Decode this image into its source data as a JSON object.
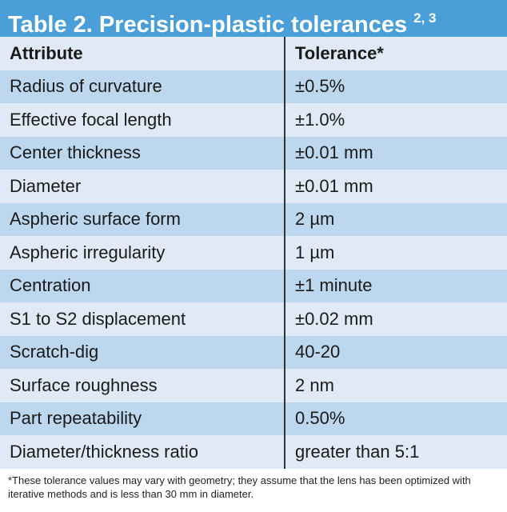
{
  "title": "Table 2. Precision-plastic tolerances",
  "title_superscript": "2, 3",
  "table": {
    "header": [
      "Attribute",
      "Tolerance*"
    ],
    "rows": [
      [
        "Radius of curvature",
        "±0.5%"
      ],
      [
        "Effective focal length",
        "±1.0%"
      ],
      [
        "Center thickness",
        "±0.01 mm"
      ],
      [
        "Diameter",
        "±0.01 mm"
      ],
      [
        "Aspheric surface form",
        "2 µm"
      ],
      [
        "Aspheric irregularity",
        "1 µm"
      ],
      [
        "Centration",
        "±1 minute"
      ],
      [
        "S1 to S2 displacement",
        "±0.02 mm"
      ],
      [
        "Scratch-dig",
        "40-20"
      ],
      [
        "Surface roughness",
        "2 nm"
      ],
      [
        "Part repeatability",
        "0.50%"
      ],
      [
        "Diameter/thickness ratio",
        "greater than 5:1"
      ]
    ]
  },
  "footnote": "*These tolerance values may vary with geometry; they assume that the lens has been optimized with iterative methods and is less than 30 mm in diameter."
}
